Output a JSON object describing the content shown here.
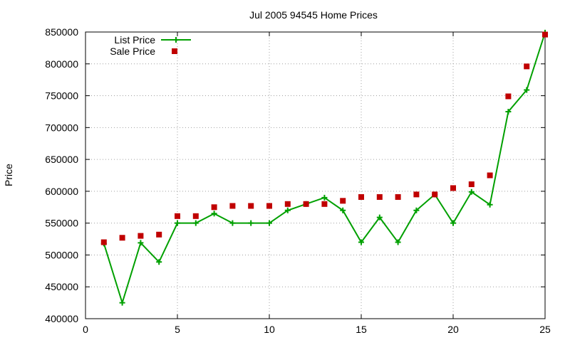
{
  "chart_data": {
    "type": "line",
    "title": "Jul 2005 94545 Home Prices",
    "xlabel": "",
    "ylabel": "Price",
    "xlim": [
      0,
      25
    ],
    "ylim": [
      400000,
      850000
    ],
    "x_ticks": [
      0,
      5,
      10,
      15,
      20,
      25
    ],
    "y_ticks": [
      400000,
      450000,
      500000,
      550000,
      600000,
      650000,
      700000,
      750000,
      800000,
      850000
    ],
    "grid": true,
    "legend_position": "top-left",
    "x": [
      1,
      2,
      3,
      4,
      5,
      6,
      7,
      8,
      9,
      10,
      11,
      12,
      13,
      14,
      15,
      16,
      17,
      18,
      19,
      20,
      21,
      22,
      23,
      24,
      25
    ],
    "series": [
      {
        "name": "List Price",
        "style": "line-plus",
        "color": "#00a000",
        "values": [
          518000,
          425000,
          519000,
          489000,
          550000,
          550000,
          565000,
          550000,
          550000,
          550000,
          570000,
          580000,
          590000,
          570000,
          520000,
          559000,
          520000,
          570000,
          595000,
          550000,
          599000,
          579000,
          725000,
          759000,
          849000
        ]
      },
      {
        "name": "Sale Price",
        "style": "square-markers",
        "color": "#c00000",
        "values": [
          520000,
          527000,
          530000,
          532000,
          561000,
          561000,
          575000,
          577000,
          577000,
          577000,
          580000,
          580000,
          580000,
          585000,
          591000,
          591000,
          591000,
          595000,
          595000,
          605000,
          611000,
          625000,
          749000,
          796000,
          846000
        ]
      }
    ]
  }
}
